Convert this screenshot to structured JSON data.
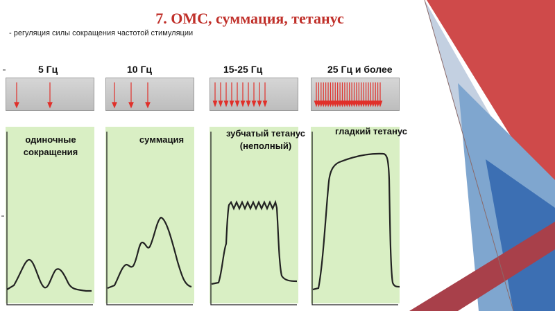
{
  "title": "7. ОМС, суммация, тетанус",
  "subtitle": "- регуляция силы сокращения частотой стимуляции",
  "colors": {
    "title": "#c0302a",
    "arrow": "#e0302a",
    "panel": "#d9efc4",
    "deco_red": "#b8484a",
    "deco_blue": "#3c6fb3"
  },
  "panels": [
    {
      "frequency": "5 Гц",
      "label_lines": [
        "одиночные",
        "сокращения"
      ]
    },
    {
      "frequency": "10 Гц",
      "label_lines": [
        "суммация"
      ]
    },
    {
      "frequency": "15-25 Гц",
      "label_lines": [
        "зубчатый тетанус",
        "(неполный)"
      ]
    },
    {
      "frequency": "25 Гц и более",
      "label_lines": [
        "гладкий тетанус"
      ]
    }
  ]
}
